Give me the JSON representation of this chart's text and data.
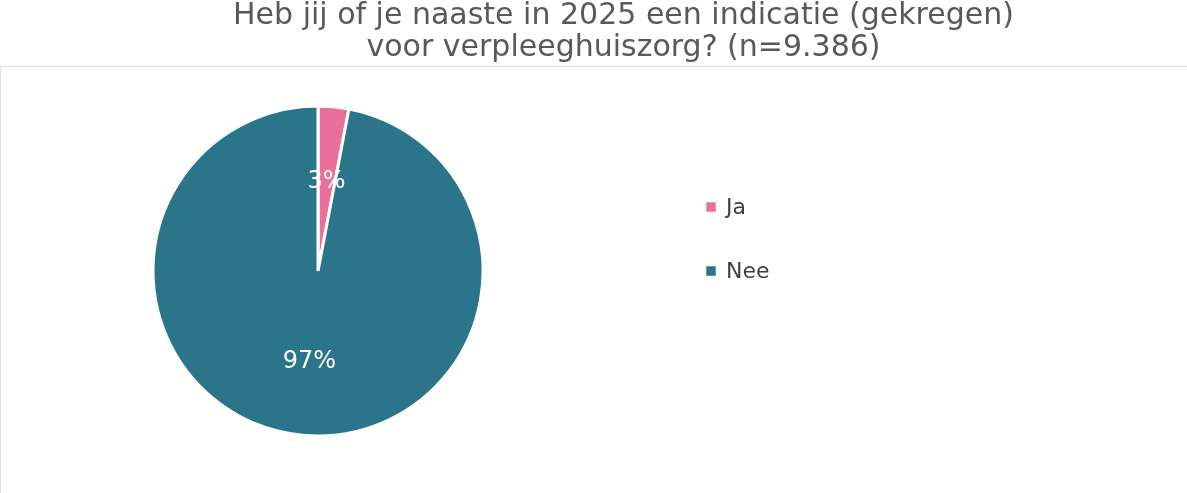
{
  "chart_data": {
    "type": "pie",
    "title": "Heb jij of je naaste in 2025 een indicatie (gekregen) voor verpleeghuiszorg? (n=9.386)",
    "categories": [
      "Ja",
      "Nee"
    ],
    "values": [
      3,
      97
    ],
    "colors": [
      "#e8709a",
      "#2a7589"
    ],
    "value_labels": [
      "3%",
      "97%"
    ],
    "legend": "right"
  }
}
